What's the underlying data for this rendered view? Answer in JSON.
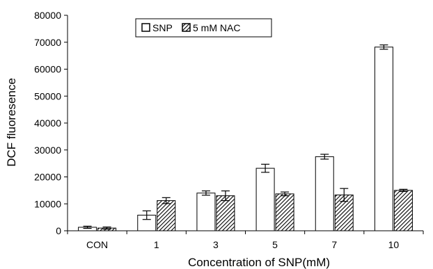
{
  "chart_data": {
    "type": "bar",
    "title": "",
    "xlabel": "Concentration of SNP(mM)",
    "ylabel": "DCF fluoresence",
    "categories": [
      "CON",
      "1",
      "3",
      "5",
      "7",
      "10"
    ],
    "ylim": [
      0,
      80000
    ],
    "yticks": [
      "0",
      "10000",
      "20000",
      "30000",
      "40000",
      "50000",
      "60000",
      "70000",
      "80000"
    ],
    "grid": false,
    "legend_position": "top-left",
    "series": [
      {
        "name": "SNP",
        "pattern": "open",
        "values": [
          1300,
          5800,
          14000,
          23200,
          27500,
          68200
        ],
        "errors": [
          400,
          1600,
          800,
          1500,
          900,
          800
        ]
      },
      {
        "name": "5 mM NAC",
        "pattern": "hatched",
        "values": [
          1000,
          11200,
          13000,
          13700,
          13300,
          15000
        ],
        "errors": [
          400,
          1100,
          1800,
          700,
          2400,
          400
        ]
      }
    ]
  }
}
